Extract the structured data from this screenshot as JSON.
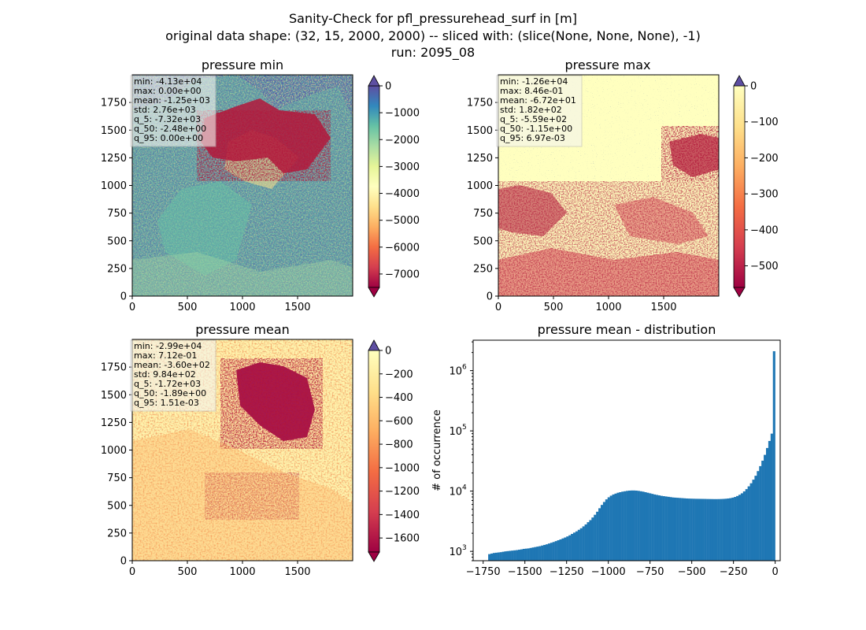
{
  "figure": {
    "title_lines": [
      "Sanity-Check for pfl_pressurehead_surf in [m]",
      "original data shape: (32, 15, 2000, 2000) -- sliced with: (slice(None, None, None), -1)",
      "run: 2095_08"
    ]
  },
  "colors": {
    "hist_bar": "#1f77b4",
    "spectral_low": "#9e0142",
    "spectral_high": "#5e4fa2",
    "stats_box_bg": "#f5f5f0",
    "stats_box_border": "#bbbbbb"
  },
  "chart_data": [
    {
      "type": "heatmap",
      "title": "pressure min",
      "colormap": "Spectral",
      "xticks": [
        "0",
        "500",
        "1000",
        "1500"
      ],
      "yticks": [
        "0",
        "250",
        "500",
        "750",
        "1000",
        "1250",
        "1500",
        "1750"
      ],
      "xlim": [
        0,
        2000
      ],
      "ylim": [
        0,
        2000
      ],
      "colorbar": {
        "min": -7500,
        "max": 0,
        "ticks": [
          0,
          -1000,
          -2000,
          -3000,
          -4000,
          -5000,
          -6000,
          -7000
        ],
        "tick_labels": [
          "0",
          "−1000",
          "−2000",
          "−3000",
          "−4000",
          "−5000",
          "−6000",
          "−7000"
        ],
        "extend": "both"
      },
      "stats": [
        "min: -4.13e+04",
        "max: 0.00e+00",
        "mean: -1.25e+03",
        "std: 2.76e+03",
        "q_5: -7.32e+03",
        "q_50: -2.48e+00",
        "q_95: 0.00e+00"
      ]
    },
    {
      "type": "heatmap",
      "title": "pressure max",
      "colormap": "Spectral",
      "xticks": [
        "0",
        "500",
        "1000",
        "1500"
      ],
      "yticks": [
        "0",
        "250",
        "500",
        "750",
        "1000",
        "1250",
        "1500",
        "1750"
      ],
      "xlim": [
        0,
        2000
      ],
      "ylim": [
        0,
        2000
      ],
      "colorbar": {
        "min": -560,
        "max": 0,
        "ticks": [
          0,
          -100,
          -200,
          -300,
          -400,
          -500
        ],
        "tick_labels": [
          "0",
          "−100",
          "−200",
          "−300",
          "−400",
          "−500"
        ],
        "extend": "both"
      },
      "stats": [
        "min: -1.26e+04",
        "max: 8.46e-01",
        "mean: -6.72e+01",
        "std: 1.82e+02",
        "q_5: -5.59e+02",
        "q_50: -1.15e+00",
        "q_95: 6.97e-03"
      ]
    },
    {
      "type": "heatmap",
      "title": "pressure mean",
      "colormap": "Spectral",
      "xticks": [
        "0",
        "500",
        "1000",
        "1500"
      ],
      "yticks": [
        "0",
        "250",
        "500",
        "750",
        "1000",
        "1250",
        "1500",
        "1750"
      ],
      "xlim": [
        0,
        2000
      ],
      "ylim": [
        0,
        2000
      ],
      "colorbar": {
        "min": -1720,
        "max": 0,
        "ticks": [
          0,
          -200,
          -400,
          -600,
          -800,
          -1000,
          -1200,
          -1400,
          -1600
        ],
        "tick_labels": [
          "0",
          "−200",
          "−400",
          "−600",
          "−800",
          "−1000",
          "−1200",
          "−1400",
          "−1600"
        ],
        "extend": "both"
      },
      "stats": [
        "min: -2.99e+04",
        "max: 7.12e-01",
        "mean: -3.60e+02",
        "std: 9.84e+02",
        "q_5: -1.72e+03",
        "q_50: -1.89e+00",
        "q_95: 1.51e-03"
      ]
    },
    {
      "type": "bar",
      "title": "pressure mean - distribution",
      "xlabel": "",
      "ylabel": "# of occurrence",
      "yscale": "log",
      "xlim": [
        -1810,
        30
      ],
      "ylim": [
        700,
        3200000
      ],
      "xticks": [
        -1750,
        -1500,
        -1250,
        -1000,
        -750,
        -500,
        -250,
        0
      ],
      "xtick_labels": [
        "−1750",
        "−1500",
        "−1250",
        "−1000",
        "−750",
        "−500",
        "−250",
        "0"
      ],
      "yticks": [
        1000,
        10000,
        100000,
        1000000
      ],
      "ytick_labels": [
        "10",
        "10",
        "10",
        "10"
      ],
      "ytick_exponents": [
        "3",
        "4",
        "5",
        "6"
      ],
      "bin_range": [
        -1720,
        0
      ],
      "counts": [
        900,
        920,
        940,
        950,
        960,
        970,
        985,
        1000,
        1010,
        1020,
        1030,
        1040,
        1050,
        1065,
        1080,
        1100,
        1110,
        1120,
        1140,
        1160,
        1180,
        1200,
        1220,
        1250,
        1280,
        1310,
        1350,
        1390,
        1430,
        1480,
        1530,
        1580,
        1640,
        1700,
        1770,
        1850,
        1950,
        2050,
        2150,
        2280,
        2420,
        2600,
        2800,
        3050,
        3300,
        3650,
        4050,
        4550,
        5200,
        5900,
        6600,
        7300,
        7900,
        8400,
        8800,
        9100,
        9400,
        9600,
        9800,
        9950,
        10100,
        10200,
        10250,
        10250,
        10200,
        10100,
        9950,
        9800,
        9600,
        9400,
        9200,
        9000,
        8800,
        8650,
        8500,
        8350,
        8250,
        8150,
        8050,
        7950,
        7850,
        7800,
        7750,
        7700,
        7650,
        7600,
        7550,
        7520,
        7500,
        7480,
        7460,
        7450,
        7440,
        7430,
        7420,
        7400,
        7390,
        7380,
        7370,
        7370,
        7380,
        7400,
        7430,
        7480,
        7550,
        7650,
        7800,
        8000,
        8300,
        8700,
        9200,
        9900,
        10800,
        12000,
        13500,
        15500,
        18000,
        21500,
        26000,
        32000,
        40000,
        52000,
        68000,
        90000,
        2100000
      ]
    }
  ]
}
